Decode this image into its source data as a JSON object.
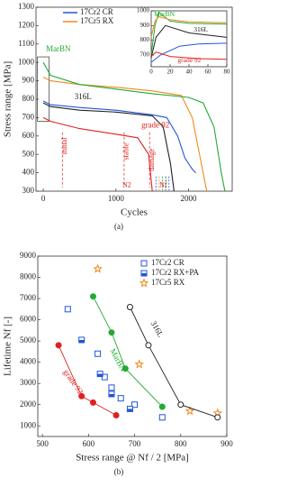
{
  "chart_data": [
    {
      "type": "line",
      "xlabel": "Cycles",
      "ylabel": "Stress range [MPa]",
      "caption": "(a)",
      "xlim": [
        -100,
        2600
      ],
      "xticks": [
        0,
        1000,
        2000
      ],
      "ylim": [
        300,
        1300
      ],
      "yticks": [
        300,
        400,
        500,
        600,
        700,
        800,
        900,
        1000,
        1100,
        1200,
        1300
      ],
      "legend": "upper left",
      "series": [
        {
          "name": "17Cr2 CR",
          "color": "#2255dd",
          "in_legend": true,
          "x": [
            0,
            100,
            500,
            1000,
            1500,
            1700,
            1850,
            1950,
            2050,
            2100
          ],
          "values": [
            790,
            770,
            755,
            740,
            715,
            700,
            600,
            480,
            420,
            400
          ]
        },
        {
          "name": "17Cr5 RX",
          "color": "#f08a1c",
          "in_legend": true,
          "x": [
            0,
            100,
            500,
            1000,
            1500,
            1900,
            2050,
            2150,
            2250
          ],
          "values": [
            920,
            900,
            880,
            865,
            845,
            820,
            700,
            500,
            300
          ]
        },
        {
          "name": "MarBN",
          "color": "#22aa33",
          "in_legend": false,
          "x": [
            0,
            100,
            500,
            1000,
            1500,
            2000,
            2200,
            2350,
            2450,
            2500
          ],
          "values": [
            1000,
            930,
            880,
            855,
            830,
            810,
            780,
            650,
            400,
            300
          ]
        },
        {
          "name": "316L",
          "color": "#222222",
          "in_legend": false,
          "x": [
            0,
            100,
            500,
            1000,
            1500,
            1650,
            1750,
            1800
          ],
          "values": [
            780,
            760,
            740,
            730,
            710,
            650,
            450,
            300
          ]
        },
        {
          "name": "grade 92",
          "color": "#e02020",
          "in_legend": false,
          "x": [
            0,
            100,
            500,
            1000,
            1300,
            1450,
            1500
          ],
          "values": [
            700,
            680,
            640,
            610,
            590,
            500,
            300
          ]
        }
      ],
      "annotations": [
        "initial",
        "stable",
        "damage",
        "N2",
        "Nf"
      ],
      "inset": {
        "xlim": [
          0,
          80
        ],
        "xticks": [
          0,
          20,
          40,
          60,
          80
        ],
        "ylim": [
          620,
          1000
        ],
        "yticks": [
          700,
          800,
          900,
          1000
        ],
        "series": [
          {
            "name": "MarBN",
            "color": "#22aa33",
            "x": [
              0,
              4,
              8,
              20,
              40,
              80
            ],
            "values": [
              700,
              900,
              990,
              930,
              915,
              910
            ]
          },
          {
            "name": "17Cr5 RX",
            "color": "#f08a1c",
            "x": [
              0,
              4,
              8,
              20,
              40,
              80
            ],
            "values": [
              820,
              930,
              960,
              940,
              925,
              920
            ]
          },
          {
            "name": "316L",
            "color": "#222222",
            "x": [
              0,
              5,
              15,
              40,
              80
            ],
            "values": [
              680,
              820,
              900,
              850,
              820
            ]
          },
          {
            "name": "17Cr2 CR",
            "color": "#2255dd",
            "x": [
              0,
              10,
              30,
              50,
              80
            ],
            "values": [
              650,
              700,
              760,
              775,
              780
            ]
          },
          {
            "name": "grade 92",
            "color": "#e02020",
            "x": [
              0,
              5,
              20,
              50,
              80
            ],
            "values": [
              690,
              720,
              690,
              675,
              670
            ]
          }
        ]
      }
    },
    {
      "type": "scatter",
      "xlabel": "Stress range @ Nf / 2 [MPa]",
      "ylabel": "Lifetime Nf [-]",
      "caption": "(b)",
      "xlim": [
        490,
        900
      ],
      "xticks": [
        500,
        600,
        700,
        800,
        900
      ],
      "ylim": [
        500,
        9000
      ],
      "yticks": [
        1000,
        2000,
        3000,
        4000,
        5000,
        6000,
        7000,
        8000,
        9000
      ],
      "legend": "upper right",
      "series": [
        {
          "name": "17Cr2 CR",
          "color": "#2255dd",
          "marker": "square-open",
          "in_legend": true,
          "x": [
            555,
            620,
            635,
            650,
            670,
            700,
            760
          ],
          "values": [
            6500,
            4400,
            3300,
            2800,
            2300,
            2000,
            1400
          ]
        },
        {
          "name": "17Cr2 RX+PA",
          "color": "#2255dd",
          "marker": "square-half",
          "in_legend": true,
          "x": [
            585,
            625,
            650,
            690
          ],
          "values": [
            5050,
            3450,
            2500,
            1800
          ]
        },
        {
          "name": "17Cr5 RX",
          "color": "#f08a1c",
          "marker": "star",
          "in_legend": true,
          "x": [
            620,
            710,
            820,
            880
          ],
          "values": [
            8400,
            3900,
            1700,
            1600
          ]
        },
        {
          "name": "MarBN",
          "color": "#22aa33",
          "marker": "circle",
          "in_legend": false,
          "fit": true,
          "x": [
            610,
            650,
            680,
            760
          ],
          "values": [
            7100,
            5400,
            3700,
            1900
          ]
        },
        {
          "name": "316L",
          "color": "#222222",
          "marker": "circle-open",
          "in_legend": false,
          "fit": true,
          "x": [
            690,
            730,
            800,
            880
          ],
          "values": [
            6600,
            4800,
            2000,
            1400
          ]
        },
        {
          "name": "grade 92",
          "color": "#e02020",
          "marker": "circle",
          "in_legend": false,
          "fit": true,
          "x": [
            535,
            585,
            610,
            660
          ],
          "values": [
            4800,
            2400,
            2100,
            1500
          ]
        }
      ]
    }
  ]
}
